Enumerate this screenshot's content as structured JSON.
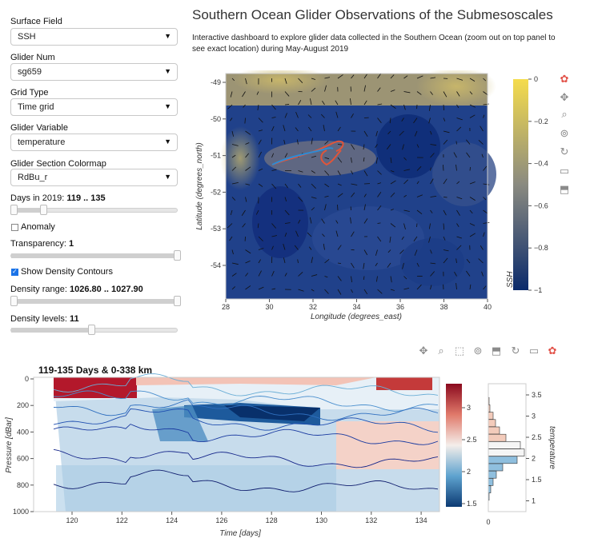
{
  "header": {
    "title": "Southern Ocean Glider Observations of the Submesoscales",
    "description": "Interactive dashboard to explore glider data collected in the Southern Ocean (zoom out on top panel to see exact location) during May-August 2019"
  },
  "controls": {
    "surface_field": {
      "label": "Surface Field",
      "value": "SSH"
    },
    "glider_num": {
      "label": "Glider Num",
      "value": "sg659"
    },
    "grid_type": {
      "label": "Grid Type",
      "value": "Time grid"
    },
    "glider_variable": {
      "label": "Glider Variable",
      "value": "temperature"
    },
    "section_colormap": {
      "label": "Glider Section Colormap",
      "value": "RdBu_r"
    },
    "days": {
      "label": "Days in 2019:",
      "value": "119 .. 135",
      "start": 119,
      "end": 135,
      "min": 119,
      "max": 200
    },
    "anomaly": {
      "label": "Anomaly",
      "checked": false
    },
    "transparency": {
      "label": "Transparency:",
      "value": "1",
      "level": 1.0
    },
    "density_contours": {
      "label": "Show Density Contours",
      "checked": true
    },
    "density_range": {
      "label": "Density range:",
      "value": "1026.80 .. 1027.90",
      "start": 1026.8,
      "end": 1027.9
    },
    "density_levels": {
      "label": "Density levels:",
      "value": "11",
      "level": 11
    }
  },
  "icons": {
    "dropdown": "▼",
    "top_toolbar": [
      "bokeh-logo-icon",
      "pan-icon",
      "box-zoom-icon",
      "wheel-zoom-icon",
      "reset-icon",
      "hover-icon",
      "save-icon"
    ],
    "bottom_toolbar": [
      "pan-icon",
      "box-zoom-icon",
      "box-select-icon",
      "wheel-zoom-icon",
      "save-icon",
      "reset-icon",
      "hover-icon",
      "bokeh-logo-icon"
    ]
  },
  "map_panel": {
    "xlabel": "Longitude (degrees_east)",
    "ylabel": "Latitude (degrees_north)",
    "x_ticks": [
      "28",
      "30",
      "32",
      "34",
      "36",
      "38",
      "40"
    ],
    "y_ticks": [
      "-49",
      "-50",
      "-51",
      "-52",
      "-53",
      "-54"
    ],
    "colorbar_label": "SSH",
    "colorbar_ticks": [
      "0",
      "−0.2",
      "−0.4",
      "−0.6",
      "−0.8",
      "−1"
    ],
    "colors": {
      "high": "#f5dc4c",
      "low": "#0a2a6b"
    }
  },
  "section_panel": {
    "title": "119-135 Days & 0-338 km",
    "xlabel": "Time [days]",
    "ylabel": "Pressure [dBar]",
    "x_ticks": [
      "120",
      "122",
      "124",
      "126",
      "128",
      "130",
      "132",
      "134"
    ],
    "y_ticks": [
      "0",
      "200",
      "400",
      "600",
      "800",
      "1000"
    ],
    "colorbar_ticks": [
      "3",
      "2.5",
      "2",
      "1.5"
    ],
    "hist_ticks": [
      "3.5",
      "3",
      "2.5",
      "2",
      "1.5",
      "1"
    ],
    "hist_label": "temperature",
    "hist_x_tick": "0"
  }
}
